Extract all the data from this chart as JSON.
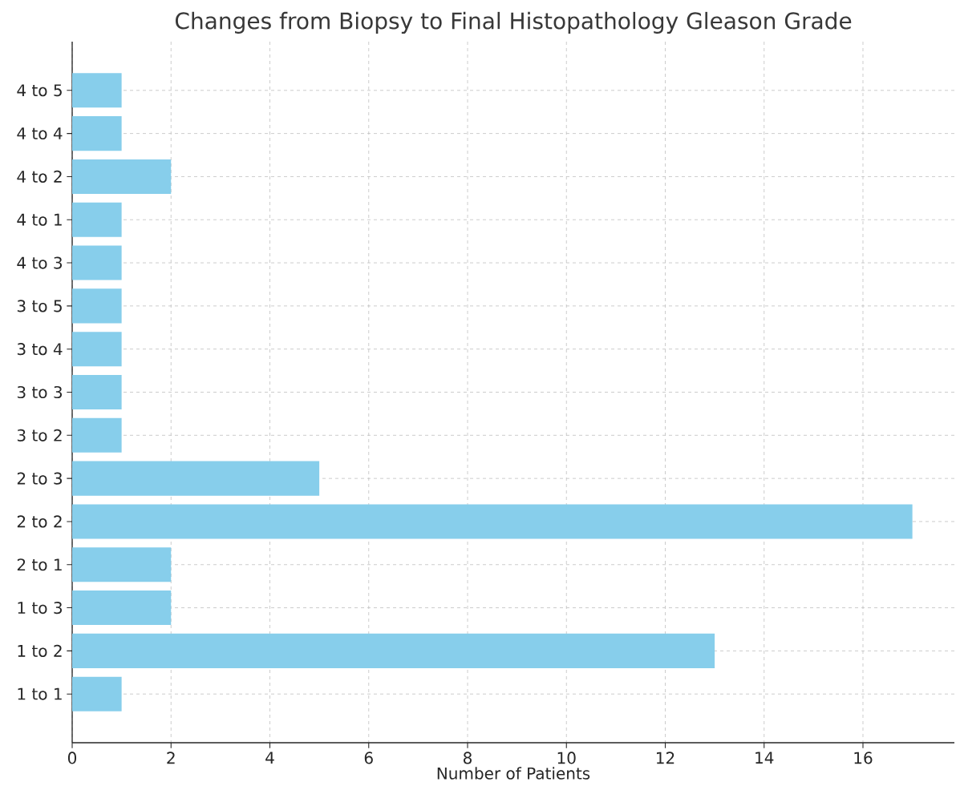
{
  "chart_data": {
    "type": "bar",
    "orientation": "horizontal",
    "title": "Changes from Biopsy to Final Histopathology Gleason Grade",
    "xlabel": "Number of Patients",
    "categories": [
      "4 to 5",
      "4 to 4",
      "4 to 2",
      "4 to 1",
      "4 to 3",
      "3 to 5",
      "3 to 4",
      "3 to 3",
      "3 to 2",
      "2 to 3",
      "2 to 2",
      "2 to 1",
      "1 to 3",
      "1 to 2",
      "1 to 1"
    ],
    "values": [
      1,
      1,
      2,
      1,
      1,
      1,
      1,
      1,
      1,
      5,
      17,
      2,
      2,
      13,
      1
    ],
    "color": "#87ceeb",
    "xlim": [
      0,
      17.85
    ],
    "xticks": [
      0,
      2,
      4,
      6,
      8,
      10,
      12,
      14,
      16
    ],
    "grid": true
  }
}
